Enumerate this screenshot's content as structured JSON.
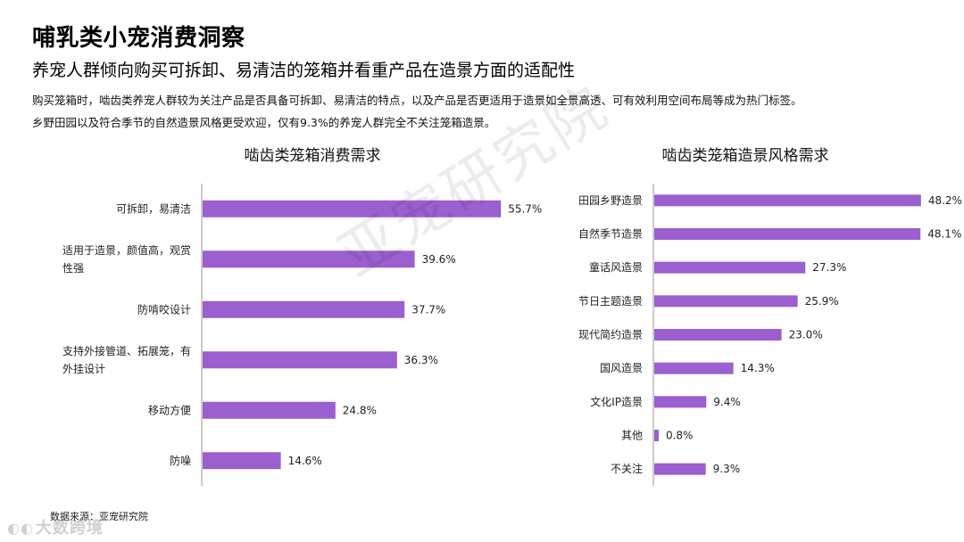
{
  "header": {
    "title": "哺乳类小宠消费洞察",
    "subtitle": "养宠人群倾向购买可拆卸、易清洁的笼箱并看重产品在造景方面的适配性",
    "desc_line1": "购买笼箱时，啮齿类养宠人群较为关注产品是否具备可拆卸、易清洁的特点，以及产品是否更适用于造景如全景高透、可有效利用空间布局等成为热门标签。",
    "desc_line2": "乡野田园以及符合季节的自然造景风格更受欢迎，仅有9.3%的养宠人群完全不关注笼箱造景。"
  },
  "watermark": "亚宠研究院",
  "footer": {
    "source": "数据来源：亚宠研究院",
    "brand_icon": "◐◐",
    "brand": "大数跨境"
  },
  "colors": {
    "bar": "#9b5fcf",
    "axis": "#999999",
    "label": "#222222"
  },
  "chart_data": [
    {
      "type": "bar",
      "orientation": "horizontal",
      "title": "啮齿类笼箱消费需求",
      "categories": [
        [
          "可拆卸，易清洁"
        ],
        [
          "适用于造景，颜值高，观赏",
          "性强"
        ],
        [
          "防啃咬设计"
        ],
        [
          "支持外接管道、拓展笼，有",
          "外挂设计"
        ],
        [
          "移动方便"
        ],
        [
          "防噪"
        ]
      ],
      "values": [
        55.7,
        39.6,
        37.7,
        36.3,
        24.8,
        14.6
      ],
      "value_labels": [
        "55.7%",
        "39.6%",
        "37.7%",
        "36.3%",
        "24.8%",
        "14.6%"
      ],
      "xlim": [
        0,
        60
      ]
    },
    {
      "type": "bar",
      "orientation": "horizontal",
      "title": "啮齿类笼箱造景风格需求",
      "categories": [
        [
          "田园乡野造景"
        ],
        [
          "自然季节造景"
        ],
        [
          "童话风造景"
        ],
        [
          "节日主题造景"
        ],
        [
          "现代简约造景"
        ],
        [
          "国风造景"
        ],
        [
          "文化IP造景"
        ],
        [
          "其他"
        ],
        [
          "不关注"
        ]
      ],
      "values": [
        48.2,
        48.1,
        27.3,
        25.9,
        23.0,
        14.3,
        9.4,
        0.8,
        9.3
      ],
      "value_labels": [
        "48.2%",
        "48.1%",
        "27.3%",
        "25.9%",
        "23.0%",
        "14.3%",
        "9.4%",
        "0.8%",
        "9.3%"
      ],
      "xlim": [
        0,
        55
      ]
    }
  ]
}
